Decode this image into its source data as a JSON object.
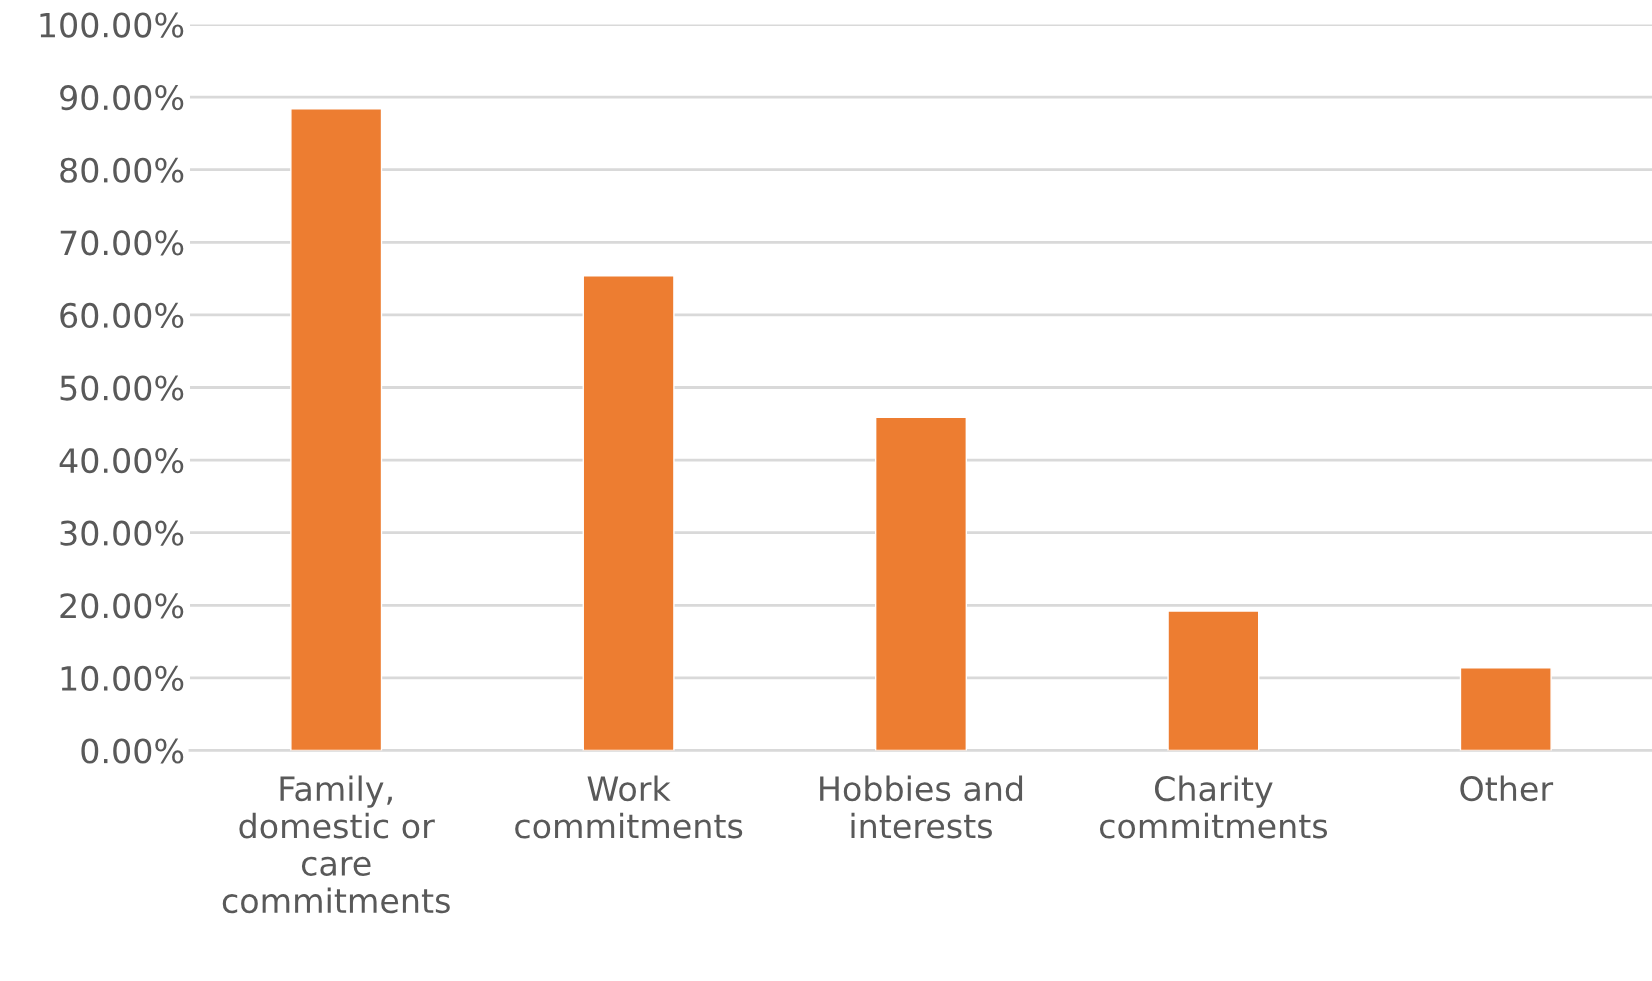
{
  "chart_data": {
    "type": "bar",
    "categories": [
      "Family, domestic or care commitments",
      "Work commitments",
      "Hobbies and interests",
      "Charity commitments",
      "Other"
    ],
    "values": [
      88.4,
      65.4,
      45.9,
      19.2,
      11.4
    ],
    "color": "#ed7d31",
    "ylim": [
      0,
      100
    ],
    "yticks": [
      {
        "value": 0,
        "label": "0.00%"
      },
      {
        "value": 10,
        "label": "10.00%"
      },
      {
        "value": 20,
        "label": "20.00%"
      },
      {
        "value": 30,
        "label": "30.00%"
      },
      {
        "value": 40,
        "label": "40.00%"
      },
      {
        "value": 50,
        "label": "50.00%"
      },
      {
        "value": 60,
        "label": "60.00%"
      },
      {
        "value": 70,
        "label": "70.00%"
      },
      {
        "value": 80,
        "label": "80.00%"
      },
      {
        "value": 90,
        "label": "90.00%"
      },
      {
        "value": 100,
        "label": "100.00%"
      }
    ],
    "grid": "y"
  }
}
